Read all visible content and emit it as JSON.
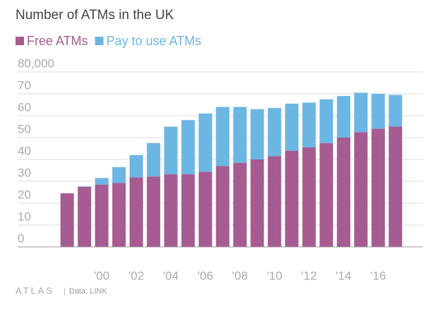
{
  "chart_data": {
    "type": "stacked_bar",
    "title": "Number of ATMs in the UK",
    "categories": [
      null,
      null,
      "'00",
      null,
      "'02",
      null,
      "'04",
      null,
      "'06",
      null,
      "'08",
      null,
      "'10",
      null,
      "'12",
      null,
      "'14",
      null,
      "'16",
      null
    ],
    "series": [
      {
        "name": "Free ATMs",
        "color": "#a65b91",
        "values": [
          24.5,
          27.5,
          28.5,
          29.2,
          31.8,
          32.2,
          33.2,
          33.2,
          34.4,
          37,
          38.5,
          40,
          41.5,
          44,
          45.5,
          47.5,
          50,
          52.5,
          54,
          55
        ]
      },
      {
        "name": "Pay to use ATMs",
        "color": "#6cb6e3",
        "values": [
          0,
          0.2,
          3,
          7.3,
          10.2,
          15.3,
          21.8,
          24.8,
          26.6,
          27,
          25.5,
          23,
          22,
          21.5,
          20.5,
          20,
          19,
          18,
          16,
          14.5
        ]
      }
    ],
    "ylim": [
      0,
      80
    ],
    "yticks": [
      0,
      10,
      20,
      30,
      40,
      50,
      60,
      70,
      {
        "value": 80,
        "label": "80,000"
      }
    ],
    "grid": true,
    "brand": "ATLAS",
    "source": "Data: LINK"
  }
}
